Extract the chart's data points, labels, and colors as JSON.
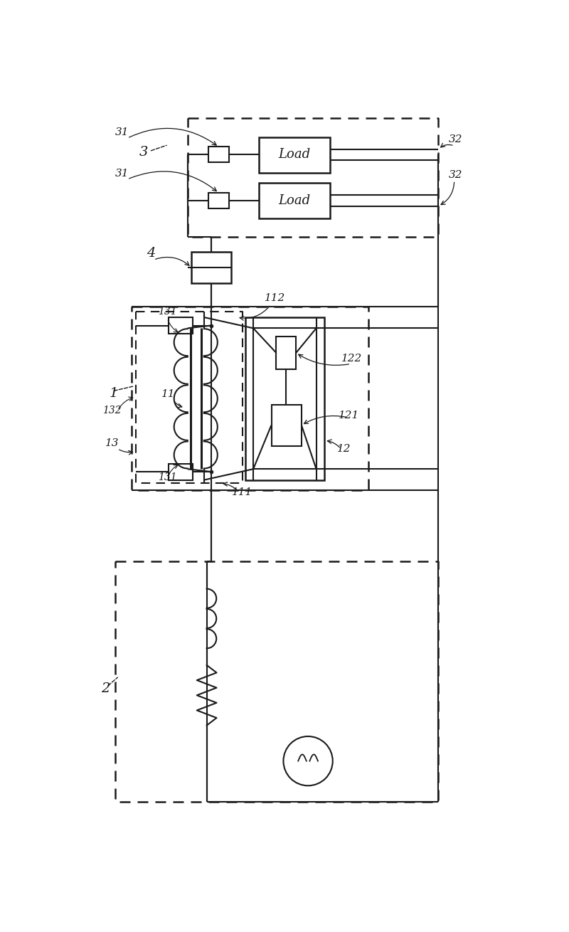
{
  "bg_color": "#ffffff",
  "line_color": "#1a1a1a",
  "lw": 1.5,
  "fig_w": 8.0,
  "fig_h": 13.1
}
